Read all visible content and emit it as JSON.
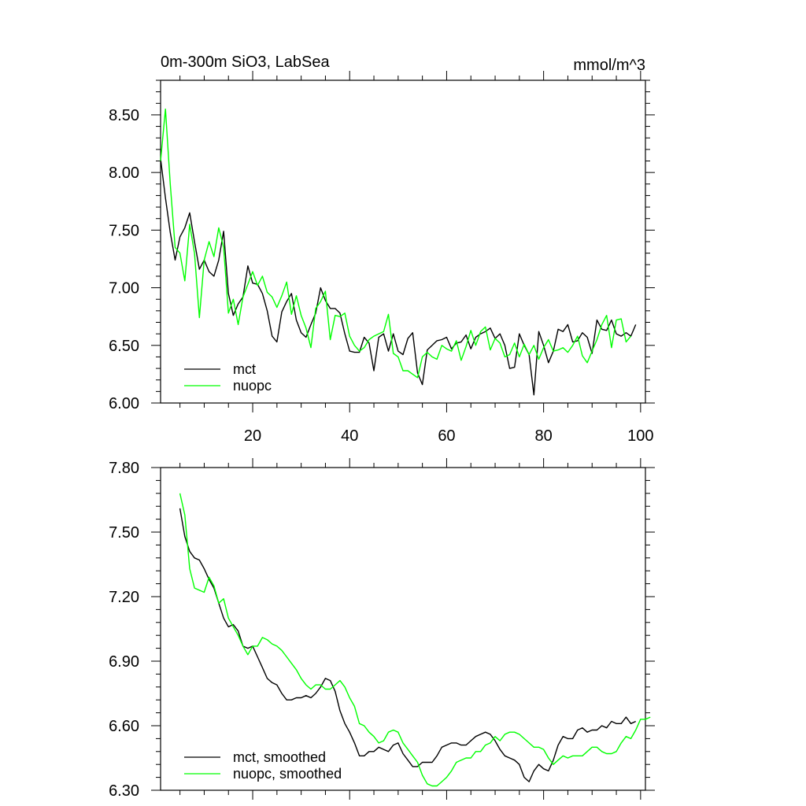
{
  "chart_data": [
    {
      "type": "line",
      "title": "0m-300m SiO3, LabSea",
      "units": "mmol/m^3",
      "xlim": [
        1,
        101
      ],
      "ylim": [
        6.0,
        8.8
      ],
      "xticks": [
        20,
        40,
        60,
        80,
        100
      ],
      "xtick_labels": [
        "20",
        "40",
        "60",
        "80",
        "100"
      ],
      "yticks": [
        6.0,
        6.5,
        7.0,
        7.5,
        8.0,
        8.5
      ],
      "ytick_labels": [
        "6.00",
        "6.50",
        "7.00",
        "7.50",
        "8.00",
        "8.50"
      ],
      "legend_position": "bottom-left",
      "series": [
        {
          "name": "mct",
          "color": "#000000",
          "x_start": 1,
          "values": [
            8.12,
            7.78,
            7.48,
            7.24,
            7.44,
            7.52,
            7.65,
            7.4,
            7.16,
            7.24,
            7.14,
            7.1,
            7.24,
            7.49,
            6.95,
            6.76,
            6.86,
            6.92,
            7.19,
            7.04,
            7.03,
            6.95,
            6.8,
            6.58,
            6.53,
            6.79,
            6.88,
            6.95,
            6.72,
            6.61,
            6.57,
            6.68,
            6.78,
            7.0,
            6.89,
            6.82,
            6.82,
            6.78,
            6.6,
            6.45,
            6.44,
            6.44,
            6.57,
            6.52,
            6.28,
            6.57,
            6.6,
            6.45,
            6.6,
            6.45,
            6.42,
            6.56,
            6.61,
            6.26,
            6.16,
            6.46,
            6.5,
            6.54,
            6.55,
            6.57,
            6.47,
            6.52,
            6.53,
            6.59,
            6.47,
            6.57,
            6.6,
            6.62,
            6.65,
            6.56,
            6.6,
            6.5,
            6.3,
            6.31,
            6.6,
            6.5,
            6.42,
            6.07,
            6.62,
            6.5,
            6.35,
            6.45,
            6.64,
            6.62,
            6.68,
            6.53,
            6.54,
            6.61,
            6.57,
            6.43,
            6.72,
            6.64,
            6.63,
            6.72,
            6.6,
            6.58,
            6.61,
            6.58,
            6.68
          ]
        },
        {
          "name": "nuopc",
          "color": "#00ff00",
          "x_start": 1,
          "values": [
            8.1,
            8.55,
            7.9,
            7.35,
            7.3,
            7.06,
            7.55,
            7.3,
            6.74,
            7.24,
            7.4,
            7.27,
            7.52,
            7.35,
            6.78,
            6.9,
            6.68,
            6.92,
            7.03,
            7.14,
            7.02,
            7.1,
            6.96,
            6.92,
            6.83,
            6.93,
            7.05,
            6.77,
            6.93,
            6.76,
            6.65,
            6.48,
            6.82,
            6.88,
            6.97,
            6.55,
            6.76,
            6.75,
            6.78,
            6.58,
            6.5,
            6.45,
            6.48,
            6.55,
            6.58,
            6.6,
            6.62,
            6.77,
            6.43,
            6.4,
            6.28,
            6.28,
            6.25,
            6.22,
            6.4,
            6.44,
            6.4,
            6.38,
            6.5,
            6.47,
            6.45,
            6.54,
            6.37,
            6.49,
            6.63,
            6.5,
            6.62,
            6.66,
            6.46,
            6.56,
            6.52,
            6.4,
            6.42,
            6.52,
            6.4,
            6.51,
            6.42,
            6.5,
            6.38,
            6.48,
            6.55,
            6.45,
            6.46,
            6.48,
            6.44,
            6.5,
            6.58,
            6.41,
            6.35,
            6.45,
            6.55,
            6.68,
            6.76,
            6.48,
            6.72,
            6.73,
            6.53,
            6.58
          ]
        }
      ]
    },
    {
      "type": "line",
      "title": "",
      "xlim": [
        1,
        101
      ],
      "ylim": [
        6.3,
        7.8
      ],
      "xticks": [
        20,
        40,
        60,
        80,
        100
      ],
      "xtick_labels": [],
      "yticks": [
        6.3,
        6.6,
        6.9,
        7.2,
        7.5,
        7.8
      ],
      "ytick_labels": [
        "6.30",
        "6.60",
        "6.90",
        "7.20",
        "7.50",
        "7.80"
      ],
      "legend_position": "bottom-left",
      "series": [
        {
          "name": "mct, smoothed",
          "color": "#000000",
          "x_start": 5,
          "values": [
            7.61,
            7.48,
            7.41,
            7.38,
            7.37,
            7.33,
            7.28,
            7.24,
            7.17,
            7.1,
            7.06,
            7.07,
            7.04,
            6.97,
            6.96,
            6.97,
            6.92,
            6.87,
            6.82,
            6.8,
            6.79,
            6.75,
            6.72,
            6.72,
            6.73,
            6.73,
            6.74,
            6.73,
            6.75,
            6.78,
            6.82,
            6.81,
            6.76,
            6.67,
            6.61,
            6.57,
            6.52,
            6.46,
            6.46,
            6.48,
            6.48,
            6.5,
            6.49,
            6.48,
            6.51,
            6.52,
            6.47,
            6.44,
            6.41,
            6.41,
            6.43,
            6.43,
            6.43,
            6.46,
            6.5,
            6.51,
            6.52,
            6.52,
            6.51,
            6.51,
            6.53,
            6.55,
            6.56,
            6.57,
            6.56,
            6.53,
            6.49,
            6.46,
            6.45,
            6.44,
            6.42,
            6.36,
            6.34,
            6.39,
            6.42,
            6.4,
            6.39,
            6.44,
            6.51,
            6.55,
            6.54,
            6.54,
            6.58,
            6.59,
            6.57,
            6.58,
            6.58,
            6.6,
            6.59,
            6.62,
            6.61,
            6.61,
            6.64,
            6.61,
            6.62
          ]
        },
        {
          "name": "nuopc, smoothed",
          "color": "#00ff00",
          "x_start": 5,
          "values": [
            7.68,
            7.58,
            7.33,
            7.24,
            7.23,
            7.22,
            7.29,
            7.25,
            7.17,
            7.19,
            7.1,
            7.06,
            7.02,
            6.97,
            6.93,
            6.97,
            6.97,
            7.01,
            7.0,
            6.98,
            6.97,
            6.95,
            6.92,
            6.89,
            6.86,
            6.82,
            6.79,
            6.77,
            6.79,
            6.79,
            6.77,
            6.77,
            6.79,
            6.81,
            6.78,
            6.73,
            6.69,
            6.61,
            6.6,
            6.57,
            6.55,
            6.52,
            6.53,
            6.57,
            6.58,
            6.57,
            6.52,
            6.49,
            6.46,
            6.43,
            6.37,
            6.33,
            6.32,
            6.32,
            6.34,
            6.36,
            6.39,
            6.43,
            6.44,
            6.45,
            6.45,
            6.48,
            6.48,
            6.51,
            6.52,
            6.55,
            6.53,
            6.56,
            6.57,
            6.57,
            6.56,
            6.54,
            6.52,
            6.5,
            6.5,
            6.49,
            6.45,
            6.42,
            6.44,
            6.46,
            6.45,
            6.46,
            6.46,
            6.46,
            6.48,
            6.5,
            6.5,
            6.48,
            6.47,
            6.47,
            6.48,
            6.52,
            6.55,
            6.54,
            6.58,
            6.63,
            6.63,
            6.64
          ]
        }
      ]
    }
  ]
}
